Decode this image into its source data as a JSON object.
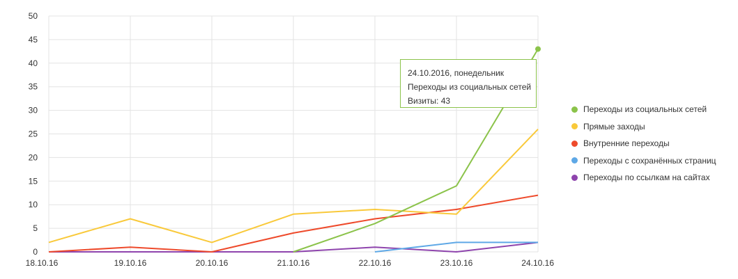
{
  "chart_data": {
    "type": "line",
    "x": [
      "18.10.16",
      "19.10.16",
      "20.10.16",
      "21.10.16",
      "22.10.16",
      "23.10.16",
      "24.10.16"
    ],
    "x_label_colors": [
      "#333333",
      "#333333",
      "#333333",
      "#333333",
      "#c62828",
      "#c62828",
      "#333333"
    ],
    "ylim": [
      0,
      50
    ],
    "yticks": [
      0,
      5,
      10,
      15,
      20,
      25,
      30,
      35,
      40,
      45,
      50
    ],
    "grid": true,
    "legend_position": "right",
    "series": [
      {
        "name": "Переходы из социальных сетей",
        "color": "#8bc34a",
        "values": [
          null,
          null,
          null,
          0,
          6,
          14,
          43
        ]
      },
      {
        "name": "Прямые заходы",
        "color": "#f9c93a",
        "values": [
          2,
          7,
          2,
          8,
          9,
          8,
          26
        ]
      },
      {
        "name": "Внутренние переходы",
        "color": "#ee4a2b",
        "values": [
          0,
          1,
          0,
          4,
          7,
          9,
          12
        ]
      },
      {
        "name": "Переходы с сохранённых страниц",
        "color": "#5ea8e6",
        "values": [
          null,
          null,
          null,
          null,
          0,
          2,
          2
        ]
      },
      {
        "name": "Переходы по ссылкам на сайтах",
        "color": "#8e44ad",
        "values": [
          0,
          0,
          0,
          0,
          1,
          0,
          2
        ]
      }
    ],
    "highlight": {
      "series": 0,
      "index": 6
    }
  },
  "tooltip": {
    "date": "24.10.2016, понедельник",
    "series_name": "Переходы из социальных сетей",
    "value_text": "Визиты: 43"
  }
}
